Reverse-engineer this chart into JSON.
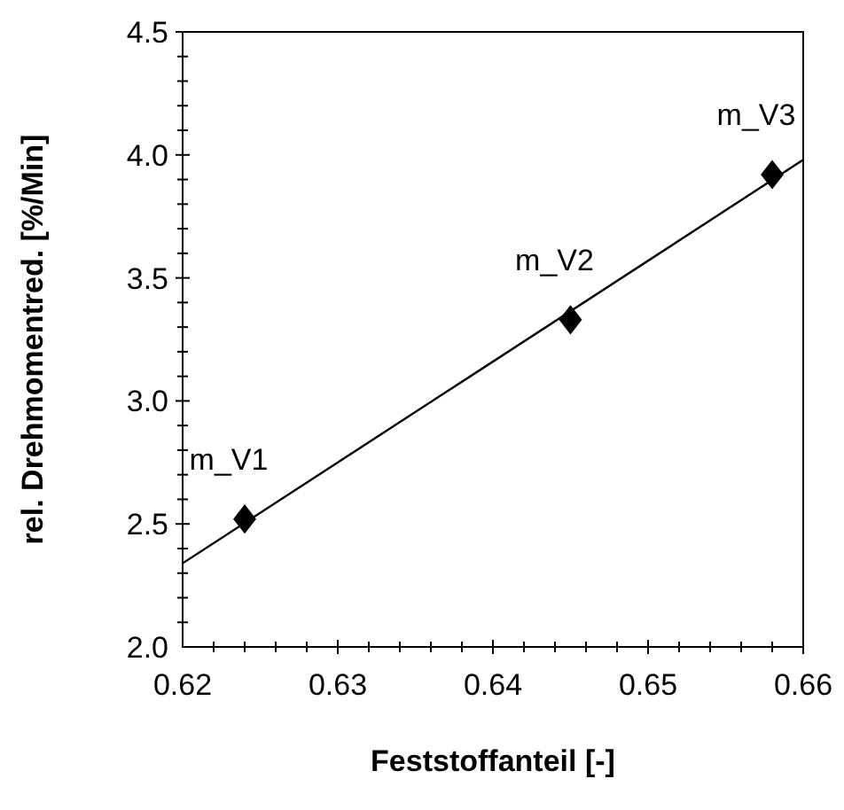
{
  "chart_data": {
    "type": "scatter",
    "xlabel": "Feststoffanteil [-]",
    "ylabel": "rel. Drehmomentred. [%/Min]",
    "xlim": [
      0.62,
      0.66
    ],
    "ylim": [
      2.0,
      4.5
    ],
    "xticks": [
      {
        "value": 0.62,
        "label": "0.62"
      },
      {
        "value": 0.622,
        "label": null
      },
      {
        "value": 0.624,
        "label": null
      },
      {
        "value": 0.626,
        "label": null
      },
      {
        "value": 0.628,
        "label": null
      },
      {
        "value": 0.63,
        "label": "0.63"
      },
      {
        "value": 0.632,
        "label": null
      },
      {
        "value": 0.634,
        "label": null
      },
      {
        "value": 0.636,
        "label": null
      },
      {
        "value": 0.638,
        "label": null
      },
      {
        "value": 0.64,
        "label": "0.64"
      },
      {
        "value": 0.642,
        "label": null
      },
      {
        "value": 0.644,
        "label": null
      },
      {
        "value": 0.646,
        "label": null
      },
      {
        "value": 0.648,
        "label": null
      },
      {
        "value": 0.65,
        "label": "0.65"
      },
      {
        "value": 0.652,
        "label": null
      },
      {
        "value": 0.654,
        "label": null
      },
      {
        "value": 0.656,
        "label": null
      },
      {
        "value": 0.658,
        "label": null
      },
      {
        "value": 0.66,
        "label": "0.66"
      }
    ],
    "yticks": [
      {
        "value": 2.0,
        "label": "2.0"
      },
      {
        "value": 2.1,
        "label": null
      },
      {
        "value": 2.2,
        "label": null
      },
      {
        "value": 2.3,
        "label": null
      },
      {
        "value": 2.4,
        "label": null
      },
      {
        "value": 2.5,
        "label": "2.5"
      },
      {
        "value": 2.6,
        "label": null
      },
      {
        "value": 2.7,
        "label": null
      },
      {
        "value": 2.8,
        "label": null
      },
      {
        "value": 2.9,
        "label": null
      },
      {
        "value": 3.0,
        "label": "3.0"
      },
      {
        "value": 3.1,
        "label": null
      },
      {
        "value": 3.2,
        "label": null
      },
      {
        "value": 3.3,
        "label": null
      },
      {
        "value": 3.4,
        "label": null
      },
      {
        "value": 3.5,
        "label": "3.5"
      },
      {
        "value": 3.6,
        "label": null
      },
      {
        "value": 3.7,
        "label": null
      },
      {
        "value": 3.8,
        "label": null
      },
      {
        "value": 3.9,
        "label": null
      },
      {
        "value": 4.0,
        "label": "4.0"
      },
      {
        "value": 4.1,
        "label": null
      },
      {
        "value": 4.2,
        "label": null
      },
      {
        "value": 4.3,
        "label": null
      },
      {
        "value": 4.4,
        "label": null
      },
      {
        "value": 4.5,
        "label": "4.5"
      }
    ],
    "grid": false,
    "series": [
      {
        "color": "#000000",
        "marker": "diamond",
        "x": [
          0.624,
          0.645,
          0.658
        ],
        "values": [
          2.52,
          3.33,
          3.92
        ]
      },
      {
        "type": "line",
        "color": "#000000",
        "marker": "none",
        "line_style": "solid",
        "x": [
          0.62,
          0.66
        ],
        "values": [
          2.34,
          3.98
        ]
      }
    ],
    "annotations": [
      {
        "text": "m_V1",
        "x": 0.624,
        "y": 2.52
      },
      {
        "text": "m_V2",
        "x": 0.645,
        "y": 3.33
      },
      {
        "text": "m_V3",
        "x": 0.658,
        "y": 3.92
      }
    ]
  }
}
